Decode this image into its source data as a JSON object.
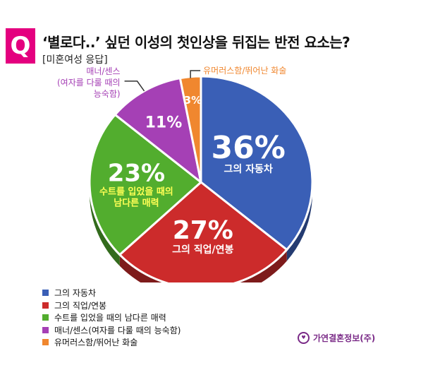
{
  "header": {
    "badge": "Q",
    "title": "‘별로다..’ 싶던 이성의 첫인상을 뒤집는 반전 요소는?",
    "subtitle": "[미혼여성 응답]"
  },
  "chart_data": {
    "type": "pie",
    "categories": [
      "그의 자동차",
      "그의 직업/연봉",
      "수트를 입었을 때의 남다른 매력",
      "매너/센스(여자를 다룰 때의 능숙함)",
      "유머러스함/뛰어난 화술"
    ],
    "values": [
      36,
      27,
      23,
      11,
      3
    ],
    "value_labels": [
      "36%",
      "27%",
      "23%",
      "11%",
      "3%"
    ],
    "slice_labels": [
      [
        "그의 자동차"
      ],
      [
        "그의 직업/연봉"
      ],
      [
        "수트를 입었을 때의",
        "남다른 매력"
      ],
      [],
      []
    ],
    "callouts": [
      null,
      null,
      null,
      [
        "매너/센스",
        "(여자를 다룰 때의",
        "능숙함)"
      ],
      [
        "유머러스함/뛰어난 화술"
      ]
    ],
    "colors": [
      "#3a5fb6",
      "#cc2b2b",
      "#52ad2e",
      "#a540b5",
      "#f0872f"
    ],
    "legend_position": "bottom-left"
  },
  "source": {
    "icon": "heart-circle-icon",
    "text": "가연결혼정보(주)"
  }
}
